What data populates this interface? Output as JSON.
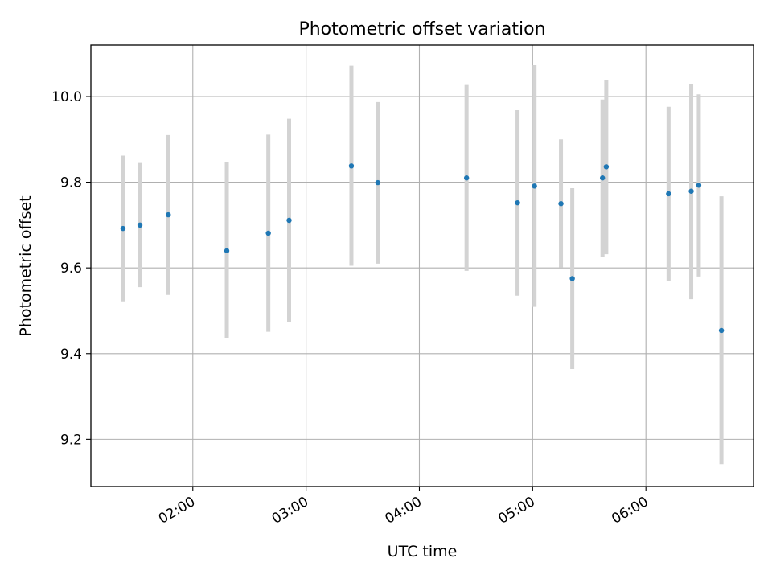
{
  "chart_data": {
    "type": "scatter",
    "title": "Photometric offset variation",
    "xlabel": "UTC time",
    "ylabel": "Photometric offset",
    "x_axis_kind": "time",
    "xlim": [
      "01:06",
      "06:57"
    ],
    "ylim": [
      9.09,
      10.12
    ],
    "x_ticks": [
      "02:00",
      "03:00",
      "04:00",
      "05:00",
      "06:00"
    ],
    "y_ticks": [
      9.2,
      9.4,
      9.6,
      9.8,
      10.0
    ],
    "y_tick_labels": [
      "9.2",
      "9.4",
      "9.6",
      "9.8",
      "10.0"
    ],
    "grid": true,
    "colors": {
      "point": "#1f77b4",
      "error_bar": "#d3d3d3"
    },
    "series": [
      {
        "points": [
          {
            "x": "01:23",
            "y": 9.692,
            "err_low": 9.522,
            "err_high": 9.862
          },
          {
            "x": "01:32",
            "y": 9.7,
            "err_low": 9.555,
            "err_high": 9.845
          },
          {
            "x": "01:47",
            "y": 9.724,
            "err_low": 9.537,
            "err_high": 9.91
          },
          {
            "x": "02:18",
            "y": 9.64,
            "err_low": 9.437,
            "err_high": 9.846
          },
          {
            "x": "02:40",
            "y": 9.681,
            "err_low": 9.451,
            "err_high": 9.911
          },
          {
            "x": "02:51",
            "y": 9.711,
            "err_low": 9.473,
            "err_high": 9.948
          },
          {
            "x": "03:24",
            "y": 9.838,
            "err_low": 9.605,
            "err_high": 10.072
          },
          {
            "x": "03:38",
            "y": 9.799,
            "err_low": 9.61,
            "err_high": 9.987
          },
          {
            "x": "04:25",
            "y": 9.81,
            "err_low": 9.593,
            "err_high": 10.027
          },
          {
            "x": "04:52",
            "y": 9.752,
            "err_low": 9.535,
            "err_high": 9.968
          },
          {
            "x": "05:01",
            "y": 9.791,
            "err_low": 9.509,
            "err_high": 10.073
          },
          {
            "x": "05:15",
            "y": 9.75,
            "err_low": 9.601,
            "err_high": 9.9
          },
          {
            "x": "05:21",
            "y": 9.575,
            "err_low": 9.364,
            "err_high": 9.786
          },
          {
            "x": "05:37",
            "y": 9.81,
            "err_low": 9.626,
            "err_high": 9.993
          },
          {
            "x": "05:39",
            "y": 9.836,
            "err_low": 9.632,
            "err_high": 10.039
          },
          {
            "x": "06:12",
            "y": 9.773,
            "err_low": 9.57,
            "err_high": 9.976
          },
          {
            "x": "06:24",
            "y": 9.779,
            "err_low": 9.527,
            "err_high": 10.03
          },
          {
            "x": "06:28",
            "y": 9.793,
            "err_low": 9.58,
            "err_high": 10.005
          },
          {
            "x": "06:40",
            "y": 9.454,
            "err_low": 9.142,
            "err_high": 9.767
          }
        ]
      }
    ]
  }
}
